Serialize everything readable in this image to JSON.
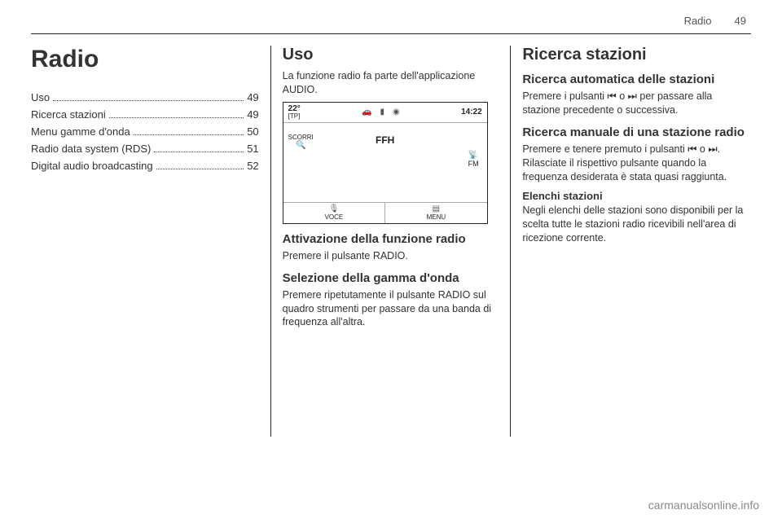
{
  "header": {
    "chapter": "Radio",
    "page_number": "49"
  },
  "col1": {
    "title": "Radio",
    "toc": [
      {
        "label": "Uso",
        "page": "49"
      },
      {
        "label": "Ricerca stazioni",
        "page": "49"
      },
      {
        "label": "Menu gamme d'onda",
        "page": "50"
      },
      {
        "label": "Radio data system (RDS)",
        "page": "51"
      },
      {
        "label": "Digital audio broadcasting",
        "page": "52"
      }
    ]
  },
  "col2": {
    "h2": "Uso",
    "intro": "La funzione radio fa parte dell'applicazione AUDIO.",
    "screen": {
      "temp": "22°",
      "tp": "[TP]",
      "time": "14:22",
      "station": "FFH",
      "scroll_label": "SCORRI",
      "band": "FM",
      "bottom_left": "VOCE",
      "bottom_right": "MENU",
      "icon_car": "🚗",
      "icon_batt": "▮",
      "icon_sig": "◉",
      "icon_search": "🔍",
      "icon_ant": "📡",
      "icon_mic": "🎙",
      "icon_menu": "▤"
    },
    "h3a": "Attivazione della funzione radio",
    "p3a": "Premere il pulsante RADIO.",
    "h3b": "Selezione della gamma d'onda",
    "p3b": "Premere ripetutamente il pulsante RADIO sul quadro strumenti per passare da una banda di frequenza all'altra."
  },
  "col3": {
    "h2": "Ricerca stazioni",
    "h3a": "Ricerca automatica delle stazioni",
    "p3a": "Premere i pulsanti ⏮ o ⏭ per passare alla stazione precedente o successiva.",
    "h3b": "Ricerca manuale di una stazione radio",
    "p3b": "Premere e tenere premuto i pulsanti ⏮ o ⏭. Rilasciate il rispettivo pulsante quando la frequenza desiderata è stata quasi raggiunta.",
    "h4": "Elenchi stazioni",
    "p4": "Negli elenchi delle stazioni sono disponibili per la scelta tutte le stazioni radio ricevibili nell'area di ricezione corrente."
  },
  "watermark": "carmanualsonline.info",
  "colors": {
    "text": "#333333",
    "rule": "#222222",
    "muted": "#555555",
    "watermark": "#888888",
    "background": "#ffffff"
  }
}
